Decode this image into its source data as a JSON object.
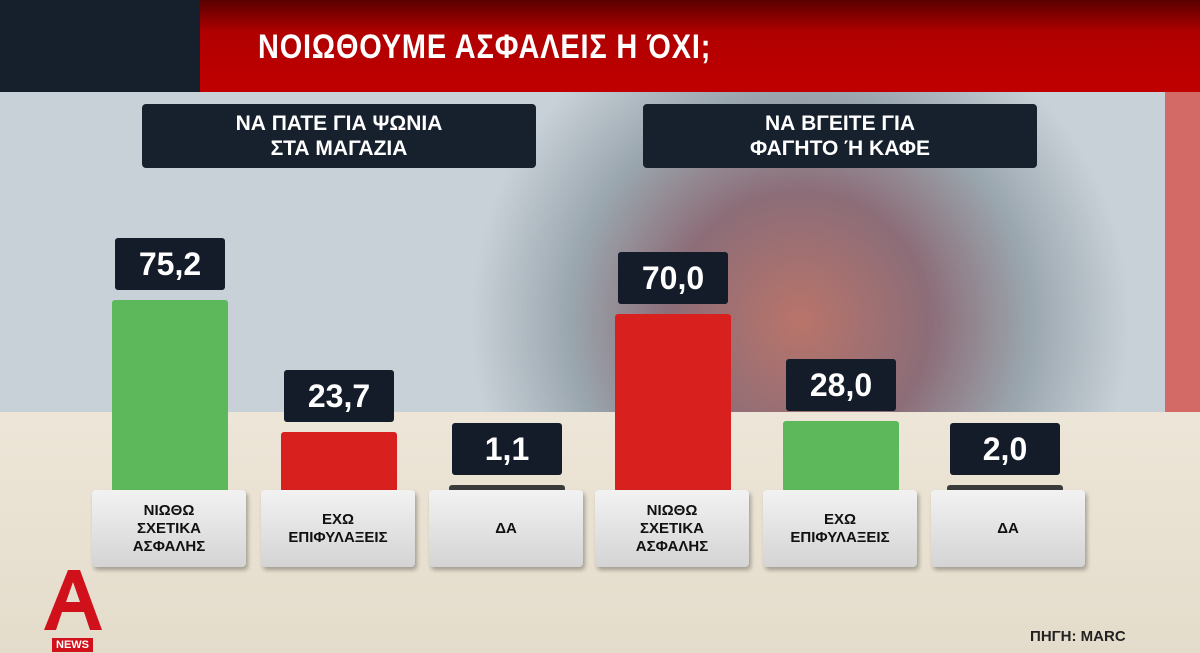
{
  "title": "ΝΟΙΩΘΟΥΜΕ ΑΣΦΑΛΕΙΣ Η ΌΧΙ;",
  "source": "ΠΗΓΗ: MARC",
  "logo": {
    "text": "NEWS"
  },
  "colors": {
    "green": "#5cb85a",
    "red": "#d8201f",
    "dark": "#3b3b3b",
    "title_bar": "#c00000"
  },
  "chart_data": [
    {
      "type": "bar",
      "title": "ΝΑ ΠΑΤΕ ΓΙΑ ΨΩΝΙΑ ΣΤΑ ΜΑΓΑΖΙΑ",
      "categories": [
        "ΝΙΩΘΩ ΣΧΕΤΙΚΑ ΑΣΦΑΛΗΣ",
        "ΕΧΩ ΕΠΙΦΥΛΑΞΕΙΣ",
        "ΔΑ"
      ],
      "values": [
        75.2,
        23.7,
        1.1
      ],
      "labels": [
        "75,2",
        "23,7",
        "1,1"
      ],
      "bar_colors": [
        "#5cb85a",
        "#d8201f",
        "#3b3b3b"
      ]
    },
    {
      "type": "bar",
      "title": "ΝΑ ΒΓΕΙΤΕ ΓΙΑ ΦΑΓΗΤΟ Ή ΚΑΦΕ",
      "categories": [
        "ΝΙΩΘΩ ΣΧΕΤΙΚΑ ΑΣΦΑΛΗΣ",
        "ΕΧΩ ΕΠΙΦΥΛΑΞΕΙΣ",
        "ΔΑ"
      ],
      "values": [
        70.0,
        28.0,
        2.0
      ],
      "labels": [
        "70,0",
        "28,0",
        "2,0"
      ],
      "bar_colors": [
        "#d8201f",
        "#5cb85a",
        "#3b3b3b"
      ]
    }
  ],
  "category_display": [
    "ΝΙΩΘΩ\nΣΧΕΤΙΚΑ\nΑΣΦΑΛΗΣ",
    "ΕΧΩ\nΕΠΙΦΥΛΑΞΕΙΣ",
    "ΔΑ"
  ],
  "heads_display": [
    "ΝΑ ΠΑΤΕ ΓΙΑ ΨΩΝΙΑ\nΣΤΑ ΜΑΓΑΖΙΑ",
    "ΝΑ ΒΓΕΙΤΕ ΓΙΑ\nΦΑΓΗΤΟ Ή ΚΑΦΕ"
  ]
}
